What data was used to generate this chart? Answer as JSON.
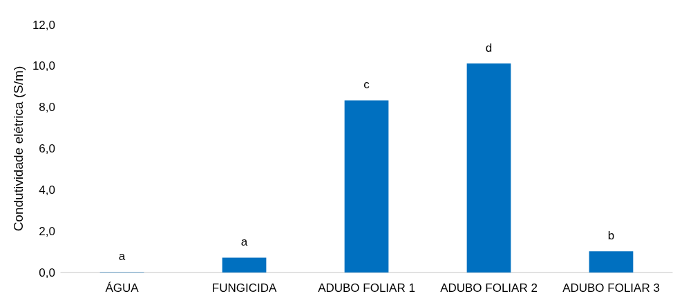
{
  "chart_data": {
    "type": "bar",
    "ylabel": "Condutividade elétrica (S/m)",
    "categories": [
      "ÁGUA",
      "FUNGICIDA",
      "ADUBO FOLIAR 1",
      "ADUBO FOLIAR 2",
      "ADUBO FOLIAR 3"
    ],
    "values": [
      0.02,
      0.72,
      8.34,
      10.13,
      1.03
    ],
    "color": "#0070c0",
    "ylim": [
      0,
      12
    ],
    "yticks": [
      {
        "value": 0,
        "label": "0,0"
      },
      {
        "value": 2,
        "label": "2,0"
      },
      {
        "value": 4,
        "label": "4,0"
      },
      {
        "value": 6,
        "label": "6,0"
      },
      {
        "value": 8,
        "label": "8,0"
      },
      {
        "value": 10,
        "label": "10,0"
      },
      {
        "value": 12,
        "label": "12,0"
      }
    ],
    "annotations": [
      {
        "text": "a",
        "x": "ÁGUA",
        "y": 0.02
      },
      {
        "text": "a",
        "x": "FUNGICIDA",
        "y": 0.72
      },
      {
        "text": "c",
        "x": "ADUBO FOLIAR 1",
        "y": 8.34
      },
      {
        "text": "d",
        "x": "ADUBO FOLIAR 2",
        "y": 10.13
      },
      {
        "text": "b",
        "x": "ADUBO FOLIAR 3",
        "y": 1.03
      }
    ],
    "grid": false
  }
}
